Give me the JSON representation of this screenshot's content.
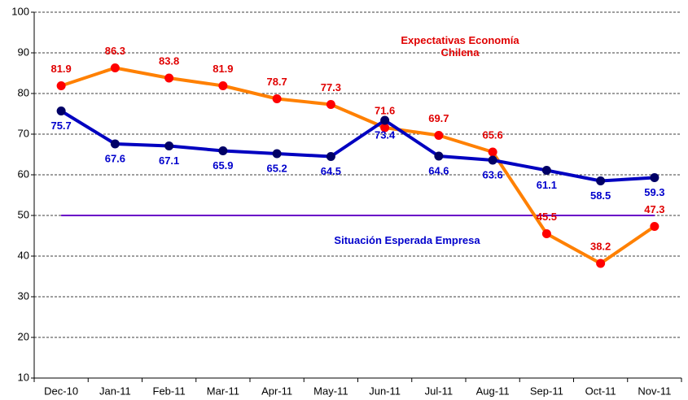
{
  "chart_data": {
    "type": "line",
    "categories": [
      "Dec-10",
      "Jan-11",
      "Feb-11",
      "Mar-11",
      "Apr-11",
      "May-11",
      "Jun-11",
      "Jul-11",
      "Aug-11",
      "Sep-11",
      "Oct-11",
      "Nov-11"
    ],
    "series": [
      {
        "name": "Expectativas Economía Chilena",
        "color": "#ff8000",
        "marker_color": "#ff0000",
        "label_color": "#e00000",
        "values": [
          81.9,
          86.3,
          83.8,
          81.9,
          78.7,
          77.3,
          71.6,
          69.7,
          65.6,
          45.5,
          38.2,
          47.3
        ]
      },
      {
        "name": "Situación Esperada Empresa",
        "color": "#0000c0",
        "marker_color": "#000066",
        "label_color": "#0000cc",
        "values": [
          75.7,
          67.6,
          67.1,
          65.9,
          65.2,
          64.5,
          73.4,
          64.6,
          63.6,
          61.1,
          58.5,
          59.3
        ]
      }
    ],
    "reference_line": {
      "value": 50,
      "color": "#6a00c8"
    },
    "ylim": [
      10,
      100
    ],
    "yticks": [
      10,
      20,
      30,
      40,
      50,
      60,
      70,
      80,
      90,
      100
    ],
    "grid": true
  }
}
